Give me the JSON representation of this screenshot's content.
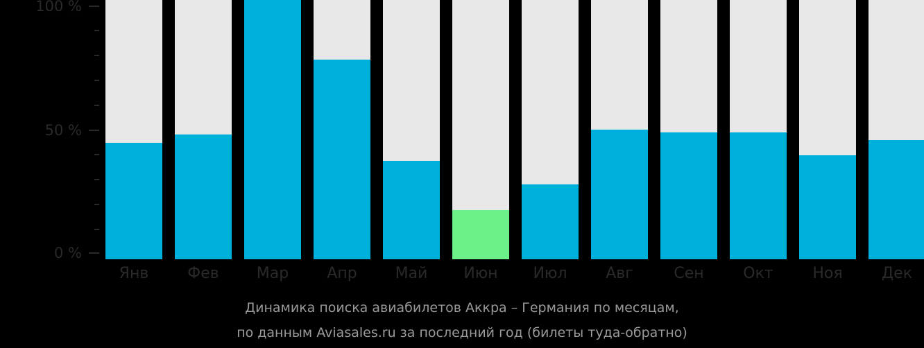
{
  "chart_data": {
    "type": "bar",
    "title": "Динамика поиска авиабилетов Аккра – Германия по месяцам,",
    "subtitle": "по данным Aviasales.ru за последний год (билеты туда-обратно)",
    "xlabel": "",
    "ylabel": "",
    "ylim": [
      0,
      100
    ],
    "yticks": [
      "100 %",
      "50 %",
      "0 %"
    ],
    "categories": [
      "Янв",
      "Фев",
      "Мар",
      "Апр",
      "Май",
      "Июн",
      "Июл",
      "Авг",
      "Сен",
      "Окт",
      "Ноя",
      "Дек"
    ],
    "values": [
      45,
      48,
      100,
      77,
      38,
      19,
      29,
      50,
      49,
      49,
      40,
      46
    ],
    "highlight_index": 5,
    "grid": false,
    "legend": "none"
  },
  "colors": {
    "background": "#000000",
    "bar_bg": "#e8e8e8",
    "bar_fill": "#00b0dc",
    "bar_highlight": "#6cf088",
    "axis_text": "#2a2a2a",
    "caption_text": "#9a9a9a"
  },
  "yaxis": {
    "top_label": "100 %",
    "mid_label": "50 %",
    "bottom_label": "0 %"
  },
  "caption": {
    "line1": "Динамика поиска авиабилетов Аккра – Германия по месяцам,",
    "line2": "по данным Aviasales.ru за последний год (билеты туда-обратно)"
  }
}
